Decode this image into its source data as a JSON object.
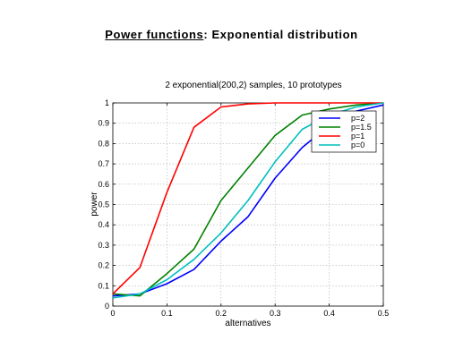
{
  "page_title": {
    "main": "Power functions",
    "rest": ":  Exponential distribution"
  },
  "chart_data": {
    "type": "line",
    "title": "2 exponential(200,2) samples,    10 prototypes",
    "xlabel": "alternatives",
    "ylabel": "power",
    "xlim": [
      0,
      0.5
    ],
    "ylim": [
      0,
      1
    ],
    "xticks": [
      "0",
      "0.1",
      "0.2",
      "0.3",
      "0.4",
      "0.5"
    ],
    "yticks": [
      "0",
      "0.1",
      "0.2",
      "0.3",
      "0.4",
      "0.5",
      "0.6",
      "0.7",
      "0.8",
      "0.9",
      "1"
    ],
    "grid": true,
    "legend_position": "top-right",
    "x": [
      0,
      0.05,
      0.1,
      0.15,
      0.2,
      0.25,
      0.3,
      0.35,
      0.4,
      0.45,
      0.5
    ],
    "series": [
      {
        "name": "p=2",
        "color": "#0000ff",
        "values": [
          0.05,
          0.06,
          0.11,
          0.18,
          0.32,
          0.44,
          0.63,
          0.78,
          0.89,
          0.96,
          0.99
        ]
      },
      {
        "name": "p=1.5",
        "color": "#008000",
        "values": [
          0.06,
          0.05,
          0.16,
          0.28,
          0.52,
          0.68,
          0.84,
          0.94,
          0.97,
          0.99,
          1.0
        ]
      },
      {
        "name": "p=1",
        "color": "#ff0000",
        "values": [
          0.06,
          0.19,
          0.56,
          0.88,
          0.98,
          0.995,
          1.0,
          1.0,
          1.0,
          1.0,
          1.0
        ]
      },
      {
        "name": "p=0",
        "color": "#00bfbf",
        "values": [
          0.04,
          0.06,
          0.13,
          0.23,
          0.36,
          0.52,
          0.71,
          0.87,
          0.94,
          0.98,
          1.0
        ]
      }
    ]
  }
}
